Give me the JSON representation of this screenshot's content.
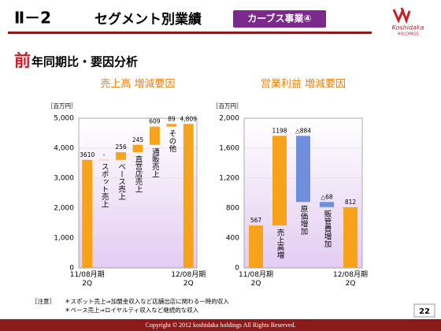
{
  "header": {
    "section": "Ⅱ－2",
    "title": "セグメント別業績",
    "badge": "カーブス事業④",
    "logo_name": "Koshidaka",
    "logo_sub": "HOLDINGS"
  },
  "subtitle": {
    "first": "前",
    "rest": "年同期比・要因分析"
  },
  "chart_data": [
    {
      "type": "waterfall",
      "title": "売上高 増減要因",
      "unit": "［百万円］",
      "categories": [
        "11/08月期\n2Q",
        "スポット売上",
        "ベース売上",
        "直営店売上",
        "通販売上",
        "その他",
        "12/08月期\n2Q"
      ],
      "values": [
        3610,
        0,
        256,
        245,
        609,
        89,
        4809
      ],
      "value_labels": [
        null,
        "-",
        null,
        null,
        null,
        null,
        "4,809"
      ],
      "ylim": [
        0,
        5000
      ],
      "yticks": [
        0,
        {
          "value": 1000,
          "label": "1,000"
        },
        {
          "value": 2000,
          "label": "2,000"
        },
        {
          "value": 3000,
          "label": "3,000"
        },
        {
          "value": 4000,
          "label": "4,000"
        },
        {
          "value": 5000,
          "label": "5,000"
        }
      ],
      "grid": true,
      "colors": {
        "increase": "#f7a21b",
        "decrease": "#6f8fdc"
      }
    },
    {
      "type": "waterfall",
      "title": "営業利益 増減要因",
      "unit": "［百万円］",
      "categories": [
        "11/08月期\n2Q",
        "売上高増",
        "原価増加",
        "販管費増加",
        "12/08月期\n2Q"
      ],
      "values": [
        567,
        1198,
        -884,
        -68,
        812
      ],
      "value_labels": [
        null,
        null,
        "△884",
        "△68",
        null
      ],
      "ylim": [
        0,
        2000
      ],
      "yticks": [
        0,
        400,
        800,
        {
          "value": 1200,
          "label": "1,200"
        },
        {
          "value": 1600,
          "label": "1,600"
        },
        {
          "value": 2000,
          "label": "2,000"
        }
      ],
      "grid": true,
      "colors": {
        "increase": "#f7a21b",
        "decrease": "#6f8fdc"
      }
    }
  ],
  "notes": {
    "label": "［注意］",
    "lines": [
      "＊スポット売上⇒加盟金収入など店舗出店に関わる一時的収入",
      "＊ベース売上⇒ロイヤルティ収入など継続的な収入"
    ]
  },
  "footer": {
    "copyright": "Copyright © 2012 koshidaka holdings All Rights Reserved.",
    "page": "22"
  }
}
